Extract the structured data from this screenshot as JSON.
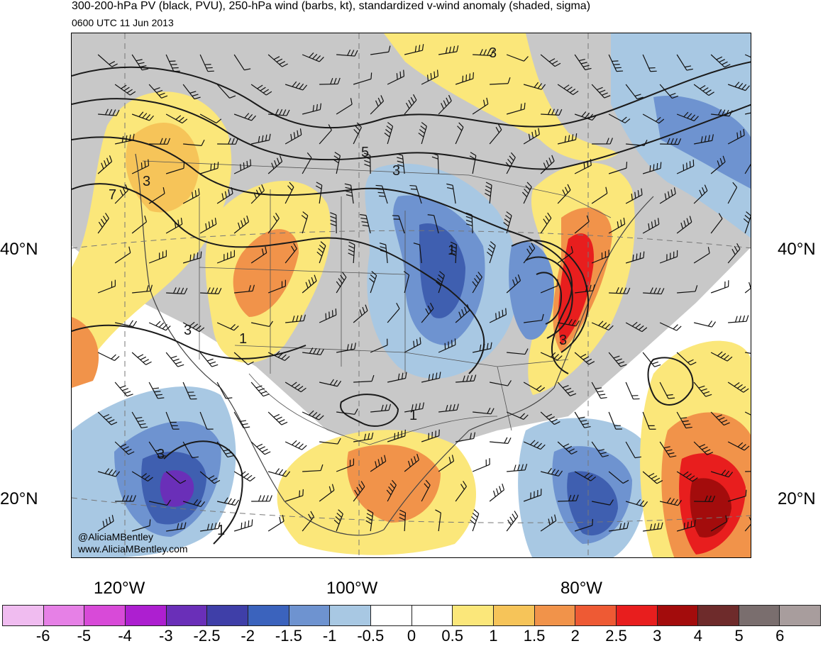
{
  "title": "300-200-hPa PV (black, PVU), 250-hPa wind (barbs, kt), standardized v-wind anomaly (shaded, sigma)",
  "valid_time": "0600 UTC 11 Jun 2013",
  "credits": [
    "@AliciaMBentley",
    "www.AliciaMBentley.com"
  ],
  "lat_labels": [
    "40°N",
    "20°N"
  ],
  "lon_labels": [
    "120°W",
    "100°W",
    "80°W"
  ],
  "contour_labels": [
    "3",
    "5",
    "3",
    "3",
    "7",
    "3",
    "3",
    "1",
    "1",
    "3",
    "1",
    "1"
  ],
  "colorbar": {
    "colors": [
      "#f0bcf0",
      "#e680e6",
      "#d84ad8",
      "#ad1fd0",
      "#6a2fb8",
      "#3f3fa8",
      "#3b63bd",
      "#6e93d0",
      "#a8c8e3",
      "#ffffff",
      "#ffffff",
      "#fbe77a",
      "#f6c459",
      "#f1934a",
      "#ee5a34",
      "#e81e1e",
      "#a30c0c",
      "#6e2b2b",
      "#7a6e6e",
      "#a89d9d"
    ],
    "tick_labels": [
      "-6",
      "-5",
      "-4",
      "-3",
      "-2.5",
      "-2",
      "-1.5",
      "-1",
      "-0.5",
      "0",
      "0.5",
      "1",
      "1.5",
      "2",
      "2.5",
      "3",
      "4",
      "5",
      "6"
    ]
  },
  "map_colors": {
    "land_gray": "#c8c8c8",
    "blue_light": "#a8c8e3",
    "blue_mid": "#6e93d0",
    "blue_dark": "#3f5fb0",
    "purple": "#6a2fb8",
    "yellow": "#fbe77a",
    "yellow_orange": "#f6c459",
    "orange": "#f1934a",
    "red": "#e81e1e",
    "dark_red": "#a30c0c"
  }
}
